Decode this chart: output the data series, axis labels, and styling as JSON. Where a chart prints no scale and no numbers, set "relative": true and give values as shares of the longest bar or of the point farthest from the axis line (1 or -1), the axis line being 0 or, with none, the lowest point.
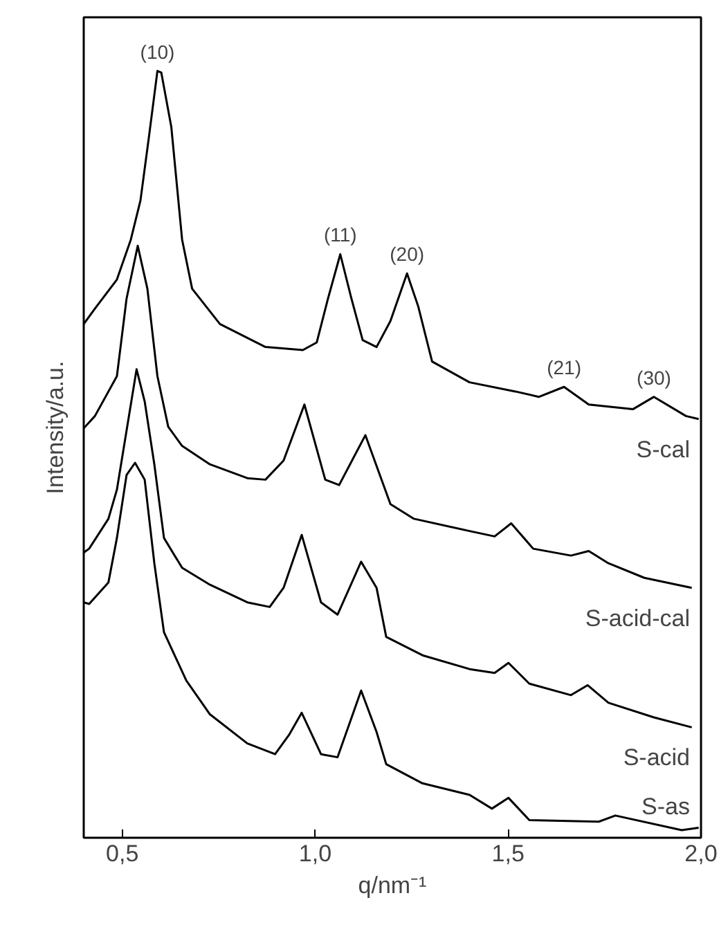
{
  "chart_data": {
    "type": "line",
    "relative": true,
    "xlabel": "q/nm⁻¹",
    "ylabel": "Intensity/a.u.",
    "xlim": [
      0.4,
      2.0
    ],
    "xticks": [
      {
        "value": 0.5,
        "label": "0,5"
      },
      {
        "value": 1.0,
        "label": "1,0"
      },
      {
        "value": 1.5,
        "label": "1,5"
      },
      {
        "value": 2.0,
        "label": "2,0"
      }
    ],
    "grid": false,
    "legend": false,
    "marker": "none",
    "line_style": "solid",
    "series": [
      {
        "name": "S-cal",
        "color": "#000000",
        "x": [
          0.4,
          0.429,
          0.486,
          0.522,
          0.547,
          0.569,
          0.591,
          0.601,
          0.627,
          0.655,
          0.681,
          0.753,
          0.871,
          0.968,
          1.004,
          1.033,
          1.065,
          1.094,
          1.123,
          1.159,
          1.195,
          1.238,
          1.267,
          1.303,
          1.4,
          1.519,
          1.58,
          1.645,
          1.709,
          1.824,
          1.878,
          1.961,
          1.994
        ],
        "values": [
          0.67,
          0.69,
          0.728,
          0.78,
          0.831,
          0.914,
          1.0,
          0.998,
          0.927,
          0.78,
          0.716,
          0.67,
          0.64,
          0.636,
          0.646,
          0.703,
          0.761,
          0.703,
          0.649,
          0.64,
          0.674,
          0.736,
          0.693,
          0.621,
          0.594,
          0.582,
          0.575,
          0.588,
          0.565,
          0.559,
          0.575,
          0.55,
          0.546
        ]
      },
      {
        "name": "S-acid-cal",
        "color": "#000000",
        "x": [
          0.4,
          0.429,
          0.486,
          0.511,
          0.54,
          0.565,
          0.591,
          0.619,
          0.655,
          0.727,
          0.824,
          0.871,
          0.918,
          0.972,
          1.026,
          1.062,
          1.13,
          1.195,
          1.256,
          1.4,
          1.465,
          1.508,
          1.565,
          1.663,
          1.709,
          1.76,
          1.853,
          1.976
        ],
        "values": [
          0.534,
          0.55,
          0.602,
          0.703,
          0.772,
          0.716,
          0.602,
          0.536,
          0.511,
          0.487,
          0.469,
          0.467,
          0.492,
          0.565,
          0.467,
          0.46,
          0.525,
          0.435,
          0.416,
          0.4,
          0.393,
          0.41,
          0.377,
          0.368,
          0.374,
          0.358,
          0.339,
          0.326
        ]
      },
      {
        "name": "S-acid",
        "color": "#000000",
        "x": [
          0.4,
          0.414,
          0.464,
          0.486,
          0.511,
          0.537,
          0.558,
          0.583,
          0.608,
          0.655,
          0.727,
          0.824,
          0.882,
          0.918,
          0.965,
          1.015,
          1.058,
          1.119,
          1.159,
          1.184,
          1.278,
          1.4,
          1.465,
          1.501,
          1.555,
          1.663,
          1.706,
          1.76,
          1.878,
          1.976
        ],
        "values": [
          0.372,
          0.377,
          0.416,
          0.454,
          0.531,
          0.611,
          0.569,
          0.487,
          0.391,
          0.352,
          0.33,
          0.307,
          0.301,
          0.326,
          0.395,
          0.307,
          0.291,
          0.36,
          0.326,
          0.262,
          0.238,
          0.22,
          0.215,
          0.228,
          0.201,
          0.186,
          0.199,
          0.176,
          0.157,
          0.144
        ]
      },
      {
        "name": "S-as",
        "color": "#000000",
        "x": [
          0.4,
          0.414,
          0.464,
          0.486,
          0.511,
          0.533,
          0.558,
          0.583,
          0.608,
          0.666,
          0.727,
          0.824,
          0.896,
          0.932,
          0.965,
          1.015,
          1.058,
          1.119,
          1.159,
          1.184,
          1.278,
          1.4,
          1.458,
          1.501,
          1.555,
          1.735,
          1.778,
          1.95,
          1.994
        ],
        "values": [
          0.307,
          0.305,
          0.333,
          0.391,
          0.473,
          0.489,
          0.467,
          0.358,
          0.268,
          0.205,
          0.161,
          0.123,
          0.109,
          0.134,
          0.163,
          0.109,
          0.105,
          0.192,
          0.138,
          0.096,
          0.071,
          0.056,
          0.038,
          0.052,
          0.023,
          0.021,
          0.029,
          0.01,
          0.013
        ]
      }
    ],
    "annotations": [
      {
        "text": "(10)",
        "x": 0.591,
        "y": 1.0
      },
      {
        "text": "(11)",
        "x": 1.065,
        "y": 0.761
      },
      {
        "text": "(20)",
        "x": 1.238,
        "y": 0.736
      },
      {
        "text": "(21)",
        "x": 1.645,
        "y": 0.588
      },
      {
        "text": "(30)",
        "x": 1.878,
        "y": 0.575
      }
    ]
  }
}
